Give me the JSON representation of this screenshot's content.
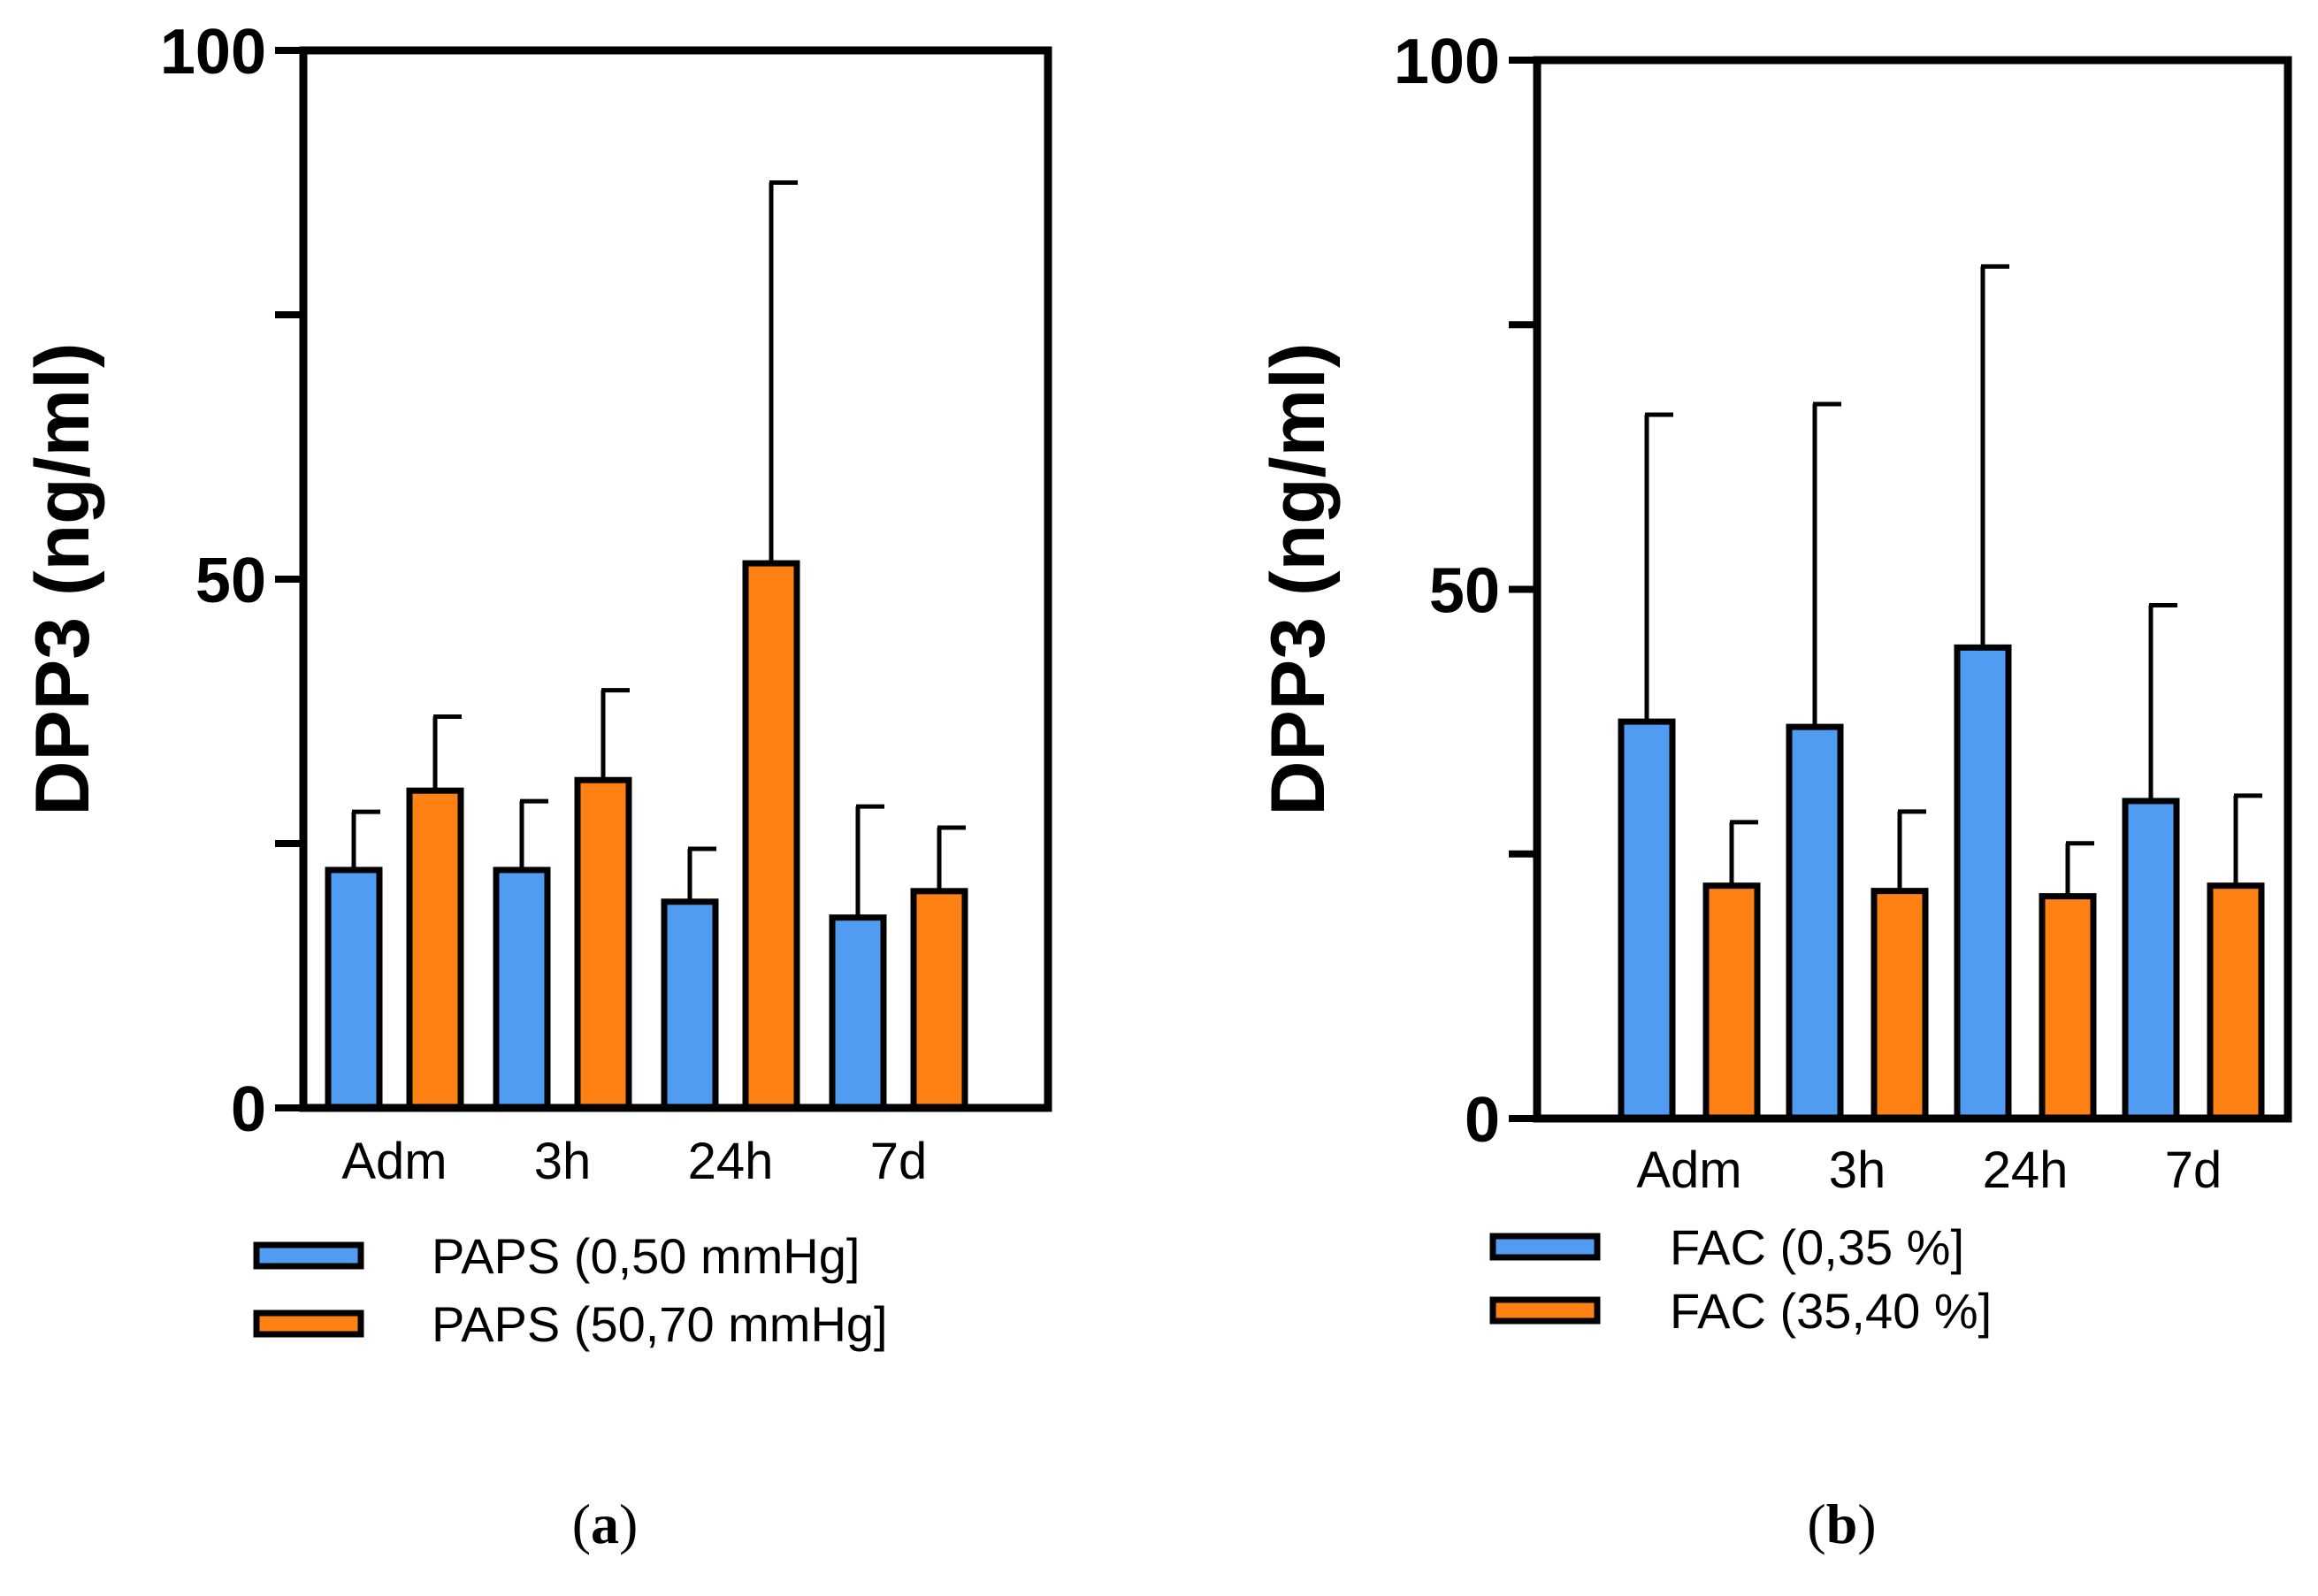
{
  "colors": {
    "blue": "#4f9cf2",
    "orange": "#ff8113"
  },
  "chart_data": [
    {
      "type": "bar",
      "panel_label": "a",
      "title": "",
      "xlabel": "",
      "ylabel": "DPP3  (ng/ml)",
      "ylim": [
        0,
        100
      ],
      "yticks": [
        0,
        25,
        50,
        75,
        100
      ],
      "ytick_labels": [
        "0",
        "50",
        "100"
      ],
      "categories": [
        "Adm",
        "3h",
        "24h",
        "7d"
      ],
      "series": [
        {
          "name": "PAPS (0,50 mmHg]",
          "color": "#4f9cf2",
          "values": [
            22.5,
            22.5,
            19.5,
            18
          ],
          "errors": [
            5.5,
            6.5,
            5,
            10.5
          ]
        },
        {
          "name": "PAPS (50,70 mmHg]",
          "color": "#ff8113",
          "values": [
            30,
            31,
            51.5,
            20.5
          ],
          "errors": [
            7,
            8.5,
            36,
            6
          ]
        }
      ],
      "legend": "bottom"
    },
    {
      "type": "bar",
      "panel_label": "b",
      "title": "",
      "xlabel": "",
      "ylabel": "DPP3 (ng/ml)",
      "ylim": [
        0,
        100
      ],
      "yticks": [
        0,
        25,
        50,
        75,
        100
      ],
      "ytick_labels": [
        "0",
        "50",
        "100"
      ],
      "categories": [
        "Adm",
        "3h",
        "24h",
        "7d"
      ],
      "series": [
        {
          "name": "FAC (0,35 %]",
          "color": "#4f9cf2",
          "values": [
            37.5,
            37,
            44.5,
            30
          ],
          "errors": [
            29,
            30.5,
            36,
            18.5
          ]
        },
        {
          "name": "FAC (35,40 %]",
          "color": "#ff8113",
          "values": [
            22,
            21.5,
            21,
            22
          ],
          "errors": [
            6,
            7.5,
            5,
            8.5
          ]
        }
      ],
      "legend": "bottom"
    }
  ]
}
